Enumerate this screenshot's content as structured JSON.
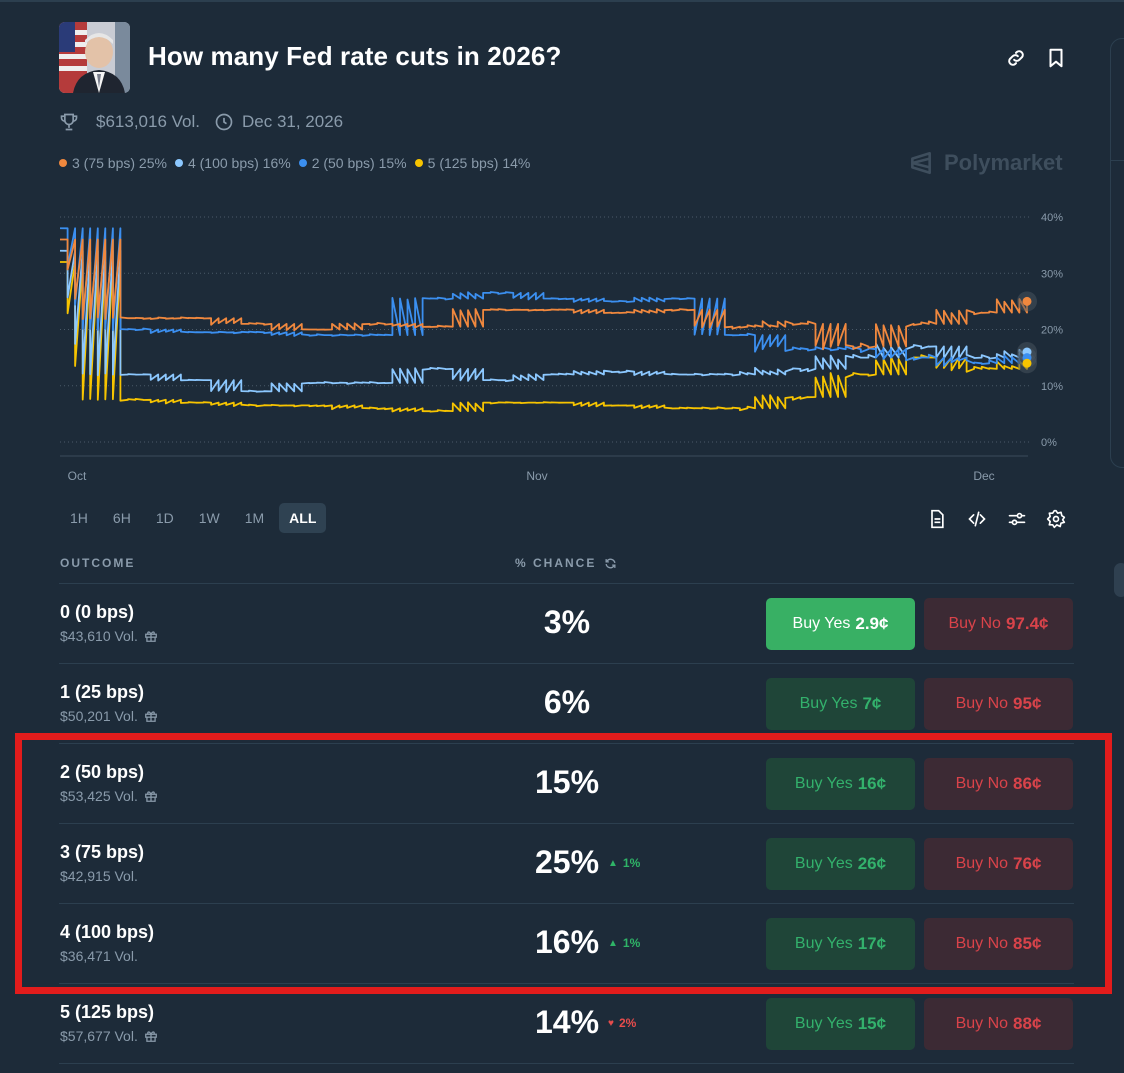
{
  "market": {
    "title": "How many Fed rate cuts in 2026?",
    "volume": "$613,016 Vol.",
    "end_date": "Dec 31, 2026",
    "brand": "Polymarket"
  },
  "legend": [
    {
      "label": "3 (75 bps) 25%",
      "color": "#f0883e"
    },
    {
      "label": "4 (100 bps) 16%",
      "color": "#8cc8ff"
    },
    {
      "label": "2 (50 bps) 15%",
      "color": "#3b8ff0"
    },
    {
      "label": "5 (125 bps) 14%",
      "color": "#f7c400"
    }
  ],
  "chart_data": {
    "type": "line",
    "x_ticks": [
      "Oct",
      "Nov",
      "Dec"
    ],
    "y_ticks": [
      "40%",
      "30%",
      "20%",
      "10%",
      "0%"
    ],
    "ylim": [
      0,
      40
    ],
    "grid": true,
    "y_axis_side": "right",
    "x": [
      "Sep 28",
      "Oct 1",
      "Oct 5",
      "Oct 10",
      "Oct 15",
      "Oct 20",
      "Oct 25",
      "Oct 30",
      "Nov 1",
      "Nov 5",
      "Nov 10",
      "Nov 15",
      "Nov 20",
      "Nov 25",
      "Nov 30",
      "Dec 2",
      "Dec 4"
    ],
    "series": [
      {
        "name": "3 (75 bps)",
        "color": "#f0883e",
        "values": [
          36,
          22,
          22,
          21,
          20,
          21,
          20.5,
          23.5,
          23.5,
          23,
          23.5,
          20.5,
          21,
          17,
          21,
          23,
          25
        ]
      },
      {
        "name": "4 (100 bps)",
        "color": "#8cc8ff",
        "values": [
          34,
          12,
          11,
          9,
          10.5,
          10.5,
          13,
          11,
          12,
          12.5,
          12,
          12,
          13,
          15,
          17,
          15,
          16
        ]
      },
      {
        "name": "2 (50 bps)",
        "color": "#3b8ff0",
        "values": [
          38,
          20,
          19.5,
          19.5,
          19,
          19,
          25.5,
          26.5,
          25.5,
          25,
          25.5,
          19,
          16.5,
          16.5,
          15,
          14,
          15
        ]
      },
      {
        "name": "5 (125 bps)",
        "color": "#f7c400",
        "values": [
          32,
          7.5,
          7,
          6.5,
          6.5,
          6,
          5.5,
          7,
          7,
          6.5,
          6,
          6,
          8,
          12,
          15,
          13,
          14
        ]
      }
    ]
  },
  "ranges": [
    "1H",
    "6H",
    "1D",
    "1W",
    "1M",
    "ALL"
  ],
  "table": {
    "col_outcome": "OUTCOME",
    "col_chance": "% CHANCE",
    "rows": [
      {
        "name": "0 (0 bps)",
        "vol": "$43,610 Vol.",
        "gift": true,
        "chance": "3%",
        "delta": "",
        "delta_dir": "",
        "yes_label": "Buy Yes",
        "yes_price": "2.9¢",
        "no_label": "Buy No",
        "no_price": "97.4¢"
      },
      {
        "name": "1 (25 bps)",
        "vol": "$50,201 Vol.",
        "gift": true,
        "chance": "6%",
        "delta": "",
        "delta_dir": "",
        "yes_label": "Buy Yes",
        "yes_price": "7¢",
        "no_label": "Buy No",
        "no_price": "95¢"
      },
      {
        "name": "2 (50 bps)",
        "vol": "$53,425 Vol.",
        "gift": true,
        "chance": "15%",
        "delta": "",
        "delta_dir": "",
        "yes_label": "Buy Yes",
        "yes_price": "16¢",
        "no_label": "Buy No",
        "no_price": "86¢"
      },
      {
        "name": "3 (75 bps)",
        "vol": "$42,915 Vol.",
        "gift": false,
        "chance": "25%",
        "delta": "1%",
        "delta_dir": "up",
        "yes_label": "Buy Yes",
        "yes_price": "26¢",
        "no_label": "Buy No",
        "no_price": "76¢"
      },
      {
        "name": "4 (100 bps)",
        "vol": "$36,471 Vol.",
        "gift": false,
        "chance": "16%",
        "delta": "1%",
        "delta_dir": "up",
        "yes_label": "Buy Yes",
        "yes_price": "17¢",
        "no_label": "Buy No",
        "no_price": "85¢"
      },
      {
        "name": "5 (125 bps)",
        "vol": "$57,677 Vol.",
        "gift": true,
        "chance": "14%",
        "delta": "2%",
        "delta_dir": "down",
        "yes_label": "Buy Yes",
        "yes_price": "15¢",
        "no_label": "Buy No",
        "no_price": "88¢"
      }
    ]
  },
  "colors": {
    "background": "#1d2b39",
    "buy_yes": "#33b16c",
    "buy_no": "#d9434a",
    "highlight": "#e21c1c"
  }
}
